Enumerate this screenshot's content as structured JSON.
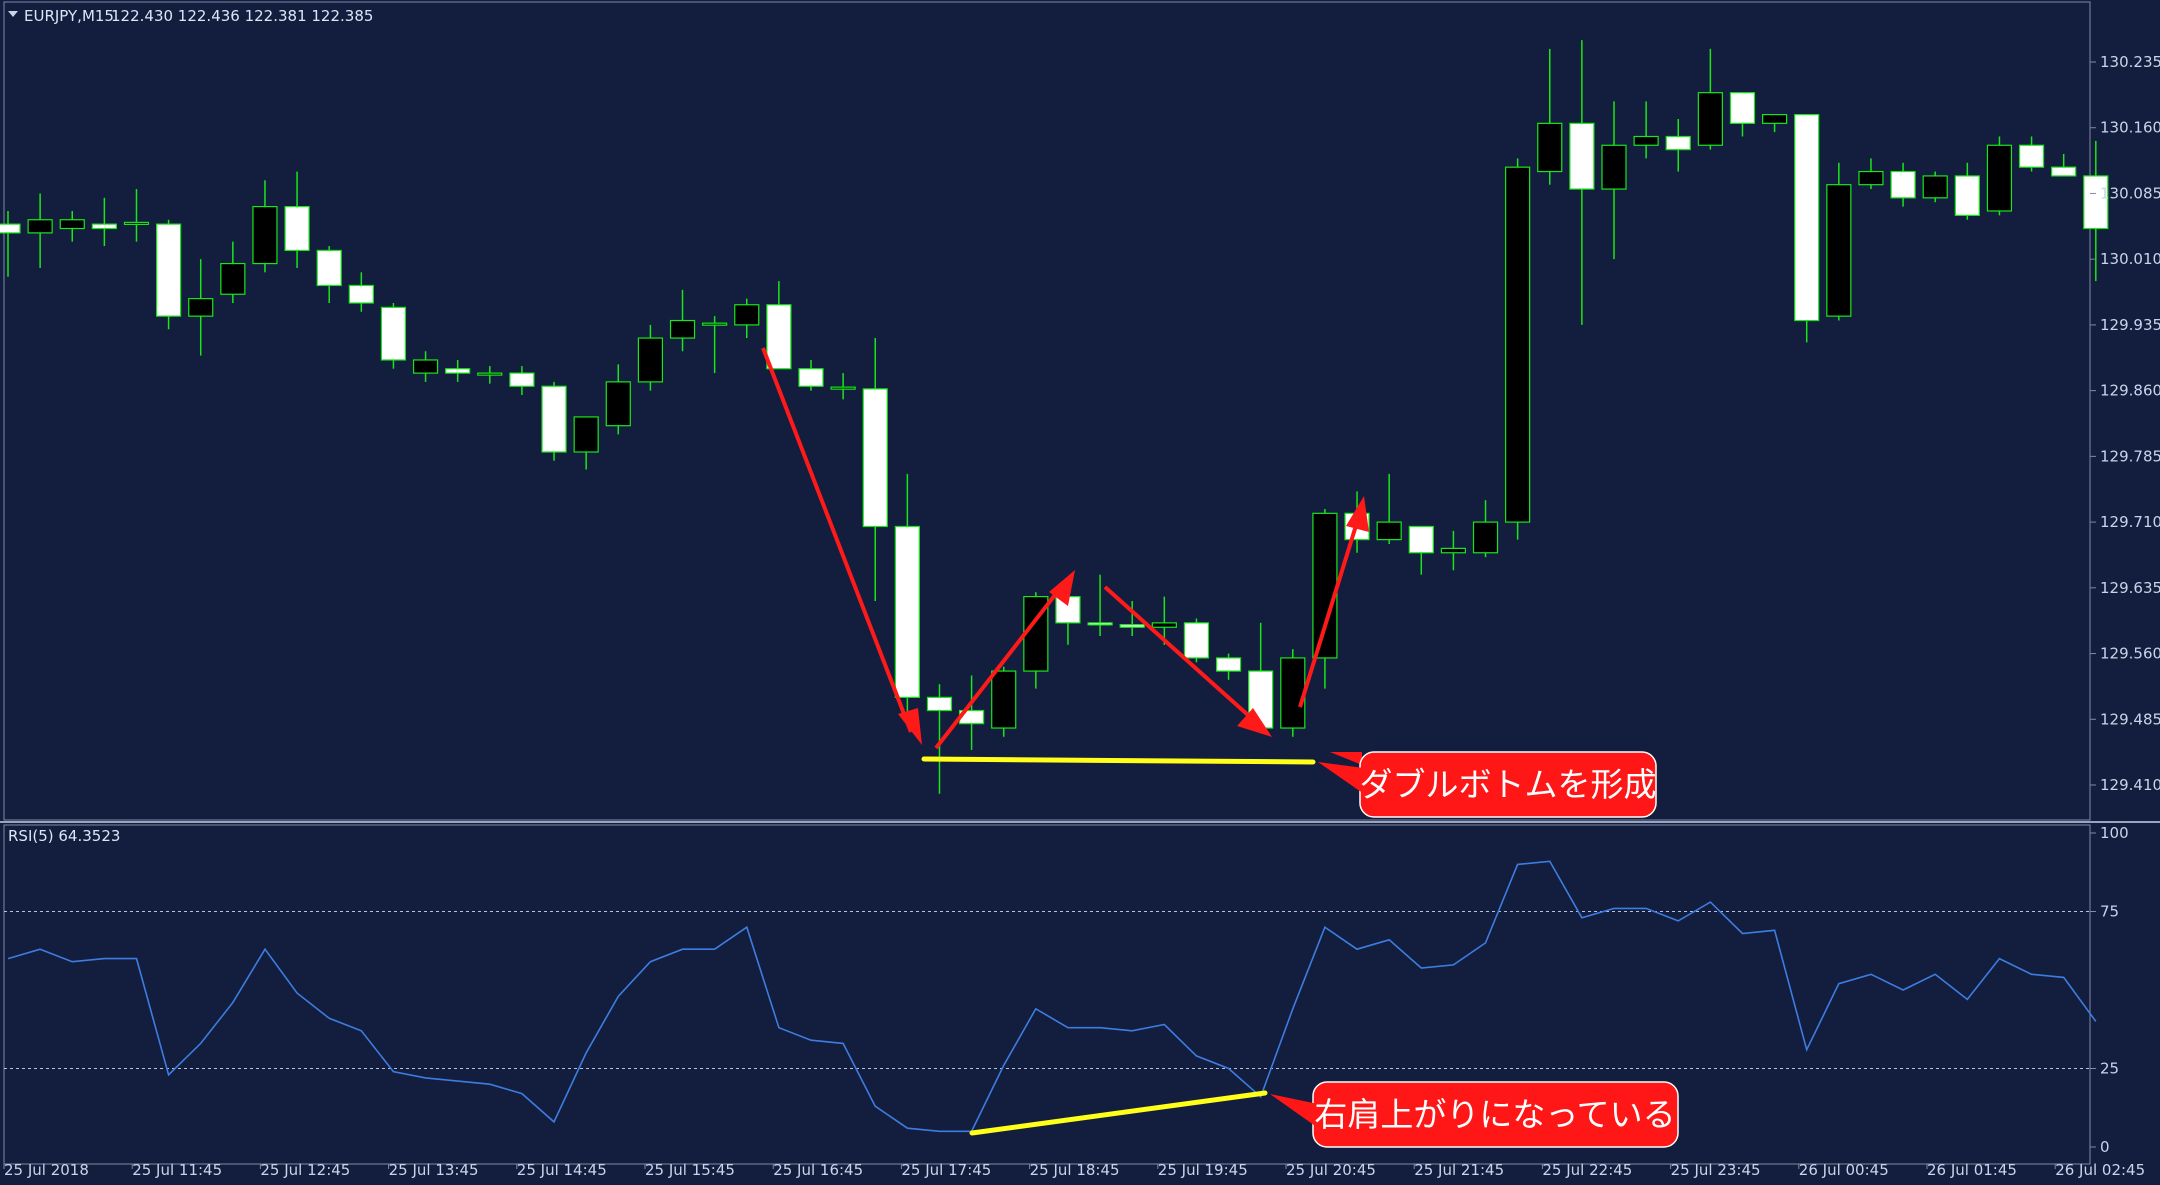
{
  "chart_data": [
    {
      "type": "candlestick",
      "header": "EURJPY,M15",
      "header_values": "122.430 122.436 122.381 122.385",
      "y_ticks": [
        "130.235",
        "130.160",
        "130.085",
        "130.010",
        "129.935",
        "129.860",
        "129.785",
        "129.710",
        "129.635",
        "129.560",
        "129.485",
        "129.410"
      ],
      "ylim": [
        129.37,
        130.3
      ],
      "candles": [
        {
          "o": 130.05,
          "h": 130.065,
          "l": 129.99,
          "c": 130.04
        },
        {
          "o": 130.04,
          "h": 130.085,
          "l": 130.0,
          "c": 130.055
        },
        {
          "o": 130.045,
          "h": 130.065,
          "l": 130.03,
          "c": 130.055
        },
        {
          "o": 130.05,
          "h": 130.08,
          "l": 130.025,
          "c": 130.045
        },
        {
          "o": 130.05,
          "h": 130.09,
          "l": 130.03,
          "c": 130.052
        },
        {
          "o": 130.05,
          "h": 130.055,
          "l": 129.93,
          "c": 129.945
        },
        {
          "o": 129.945,
          "h": 130.01,
          "l": 129.9,
          "c": 129.965
        },
        {
          "o": 129.97,
          "h": 130.03,
          "l": 129.96,
          "c": 130.005
        },
        {
          "o": 130.005,
          "h": 130.1,
          "l": 129.995,
          "c": 130.07
        },
        {
          "o": 130.07,
          "h": 130.11,
          "l": 130.0,
          "c": 130.02
        },
        {
          "o": 130.02,
          "h": 130.025,
          "l": 129.96,
          "c": 129.98
        },
        {
          "o": 129.98,
          "h": 129.995,
          "l": 129.95,
          "c": 129.96
        },
        {
          "o": 129.955,
          "h": 129.96,
          "l": 129.885,
          "c": 129.895
        },
        {
          "o": 129.88,
          "h": 129.905,
          "l": 129.87,
          "c": 129.895
        },
        {
          "o": 129.885,
          "h": 129.895,
          "l": 129.87,
          "c": 129.88
        },
        {
          "o": 129.878,
          "h": 129.888,
          "l": 129.868,
          "c": 129.88
        },
        {
          "o": 129.88,
          "h": 129.888,
          "l": 129.855,
          "c": 129.865
        },
        {
          "o": 129.865,
          "h": 129.87,
          "l": 129.78,
          "c": 129.79
        },
        {
          "o": 129.79,
          "h": 129.83,
          "l": 129.77,
          "c": 129.83
        },
        {
          "o": 129.82,
          "h": 129.89,
          "l": 129.81,
          "c": 129.87
        },
        {
          "o": 129.87,
          "h": 129.935,
          "l": 129.86,
          "c": 129.92
        },
        {
          "o": 129.92,
          "h": 129.975,
          "l": 129.905,
          "c": 129.94
        },
        {
          "o": 129.935,
          "h": 129.945,
          "l": 129.88,
          "c": 129.937
        },
        {
          "o": 129.935,
          "h": 129.965,
          "l": 129.92,
          "c": 129.958
        },
        {
          "o": 129.958,
          "h": 129.985,
          "l": 129.89,
          "c": 129.885
        },
        {
          "o": 129.885,
          "h": 129.895,
          "l": 129.86,
          "c": 129.865
        },
        {
          "o": 129.862,
          "h": 129.88,
          "l": 129.85,
          "c": 129.864
        },
        {
          "o": 129.862,
          "h": 129.92,
          "l": 129.62,
          "c": 129.705
        },
        {
          "o": 129.705,
          "h": 129.765,
          "l": 129.48,
          "c": 129.51
        },
        {
          "o": 129.51,
          "h": 129.525,
          "l": 129.4,
          "c": 129.495
        },
        {
          "o": 129.495,
          "h": 129.535,
          "l": 129.45,
          "c": 129.48
        },
        {
          "o": 129.475,
          "h": 129.545,
          "l": 129.465,
          "c": 129.54
        },
        {
          "o": 129.54,
          "h": 129.63,
          "l": 129.52,
          "c": 129.625
        },
        {
          "o": 129.625,
          "h": 129.63,
          "l": 129.57,
          "c": 129.595
        },
        {
          "o": 129.595,
          "h": 129.65,
          "l": 129.58,
          "c": 129.593
        },
        {
          "o": 129.593,
          "h": 129.62,
          "l": 129.58,
          "c": 129.59
        },
        {
          "o": 129.59,
          "h": 129.625,
          "l": 129.57,
          "c": 129.595
        },
        {
          "o": 129.595,
          "h": 129.6,
          "l": 129.55,
          "c": 129.555
        },
        {
          "o": 129.555,
          "h": 129.56,
          "l": 129.53,
          "c": 129.54
        },
        {
          "o": 129.54,
          "h": 129.595,
          "l": 129.47,
          "c": 129.475
        },
        {
          "o": 129.475,
          "h": 129.565,
          "l": 129.465,
          "c": 129.555
        },
        {
          "o": 129.555,
          "h": 129.725,
          "l": 129.52,
          "c": 129.72
        },
        {
          "o": 129.72,
          "h": 129.745,
          "l": 129.675,
          "c": 129.69
        },
        {
          "o": 129.69,
          "h": 129.765,
          "l": 129.685,
          "c": 129.71
        },
        {
          "o": 129.705,
          "h": 129.705,
          "l": 129.65,
          "c": 129.675
        },
        {
          "o": 129.675,
          "h": 129.7,
          "l": 129.655,
          "c": 129.68
        },
        {
          "o": 129.675,
          "h": 129.735,
          "l": 129.67,
          "c": 129.71
        },
        {
          "o": 129.71,
          "h": 130.125,
          "l": 129.69,
          "c": 130.115
        },
        {
          "o": 130.11,
          "h": 130.25,
          "l": 130.095,
          "c": 130.165
        },
        {
          "o": 130.165,
          "h": 130.26,
          "l": 129.935,
          "c": 130.09
        },
        {
          "o": 130.09,
          "h": 130.19,
          "l": 130.01,
          "c": 130.14
        },
        {
          "o": 130.14,
          "h": 130.19,
          "l": 130.125,
          "c": 130.15
        },
        {
          "o": 130.15,
          "h": 130.17,
          "l": 130.11,
          "c": 130.135
        },
        {
          "o": 130.14,
          "h": 130.25,
          "l": 130.135,
          "c": 130.2
        },
        {
          "o": 130.2,
          "h": 130.2,
          "l": 130.15,
          "c": 130.165
        },
        {
          "o": 130.165,
          "h": 130.175,
          "l": 130.155,
          "c": 130.175
        },
        {
          "o": 130.175,
          "h": 130.175,
          "l": 129.915,
          "c": 129.94
        },
        {
          "o": 129.945,
          "h": 130.12,
          "l": 129.94,
          "c": 130.095
        },
        {
          "o": 130.095,
          "h": 130.125,
          "l": 130.09,
          "c": 130.11
        },
        {
          "o": 130.11,
          "h": 130.12,
          "l": 130.07,
          "c": 130.08
        },
        {
          "o": 130.08,
          "h": 130.11,
          "l": 130.075,
          "c": 130.105
        },
        {
          "o": 130.105,
          "h": 130.12,
          "l": 130.055,
          "c": 130.06
        },
        {
          "o": 130.065,
          "h": 130.15,
          "l": 130.06,
          "c": 130.14
        },
        {
          "o": 130.14,
          "h": 130.15,
          "l": 130.11,
          "c": 130.115
        },
        {
          "o": 130.115,
          "h": 130.13,
          "l": 130.105,
          "c": 130.105
        },
        {
          "o": 130.105,
          "h": 130.145,
          "l": 129.985,
          "c": 130.045
        }
      ]
    },
    {
      "type": "line",
      "header": "RSI(5) 64.3523",
      "y_ticks": [
        "100",
        "75",
        "25",
        "0"
      ],
      "ylim": [
        0,
        100
      ],
      "levels": [
        75,
        25
      ],
      "values": [
        60,
        63,
        59,
        60,
        60,
        23,
        33,
        46,
        63,
        49,
        41,
        37,
        24,
        22,
        21,
        20,
        17,
        8,
        30,
        48,
        59,
        63,
        63,
        70,
        38,
        34,
        33,
        13,
        6,
        5,
        5,
        26,
        44,
        38,
        38,
        37,
        39,
        29,
        25,
        16,
        44,
        70,
        63,
        66,
        57,
        58,
        65,
        90,
        91,
        73,
        76,
        76,
        72,
        78,
        68,
        69,
        31,
        52,
        55,
        50,
        55,
        47,
        60,
        55,
        54,
        40
      ],
      "x_ticks": [
        "25 Jul 2018",
        "25 Jul 11:45",
        "25 Jul 12:45",
        "25 Jul 13:45",
        "25 Jul 14:45",
        "25 Jul 15:45",
        "25 Jul 16:45",
        "25 Jul 17:45",
        "25 Jul 18:45",
        "25 Jul 19:45",
        "25 Jul 20:45",
        "25 Jul 21:45",
        "25 Jul 22:45",
        "25 Jul 23:45",
        "26 Jul 00:45",
        "26 Jul 01:45",
        "26 Jul 02:45"
      ]
    }
  ],
  "annotations": {
    "price_callout": "ダブルボトムを形成",
    "rsi_callout": "右肩上がりになっている"
  },
  "colors": {
    "background": "#131d3e",
    "up_body": "#000000",
    "down_body": "#ffffff",
    "wick": "#19e619",
    "rsi_line": "#3d7de0",
    "arrow": "#ff1a1a",
    "trendline": "#ffff1a",
    "callout_fill": "#ff1616",
    "axis_text": "#c8d4ea"
  }
}
